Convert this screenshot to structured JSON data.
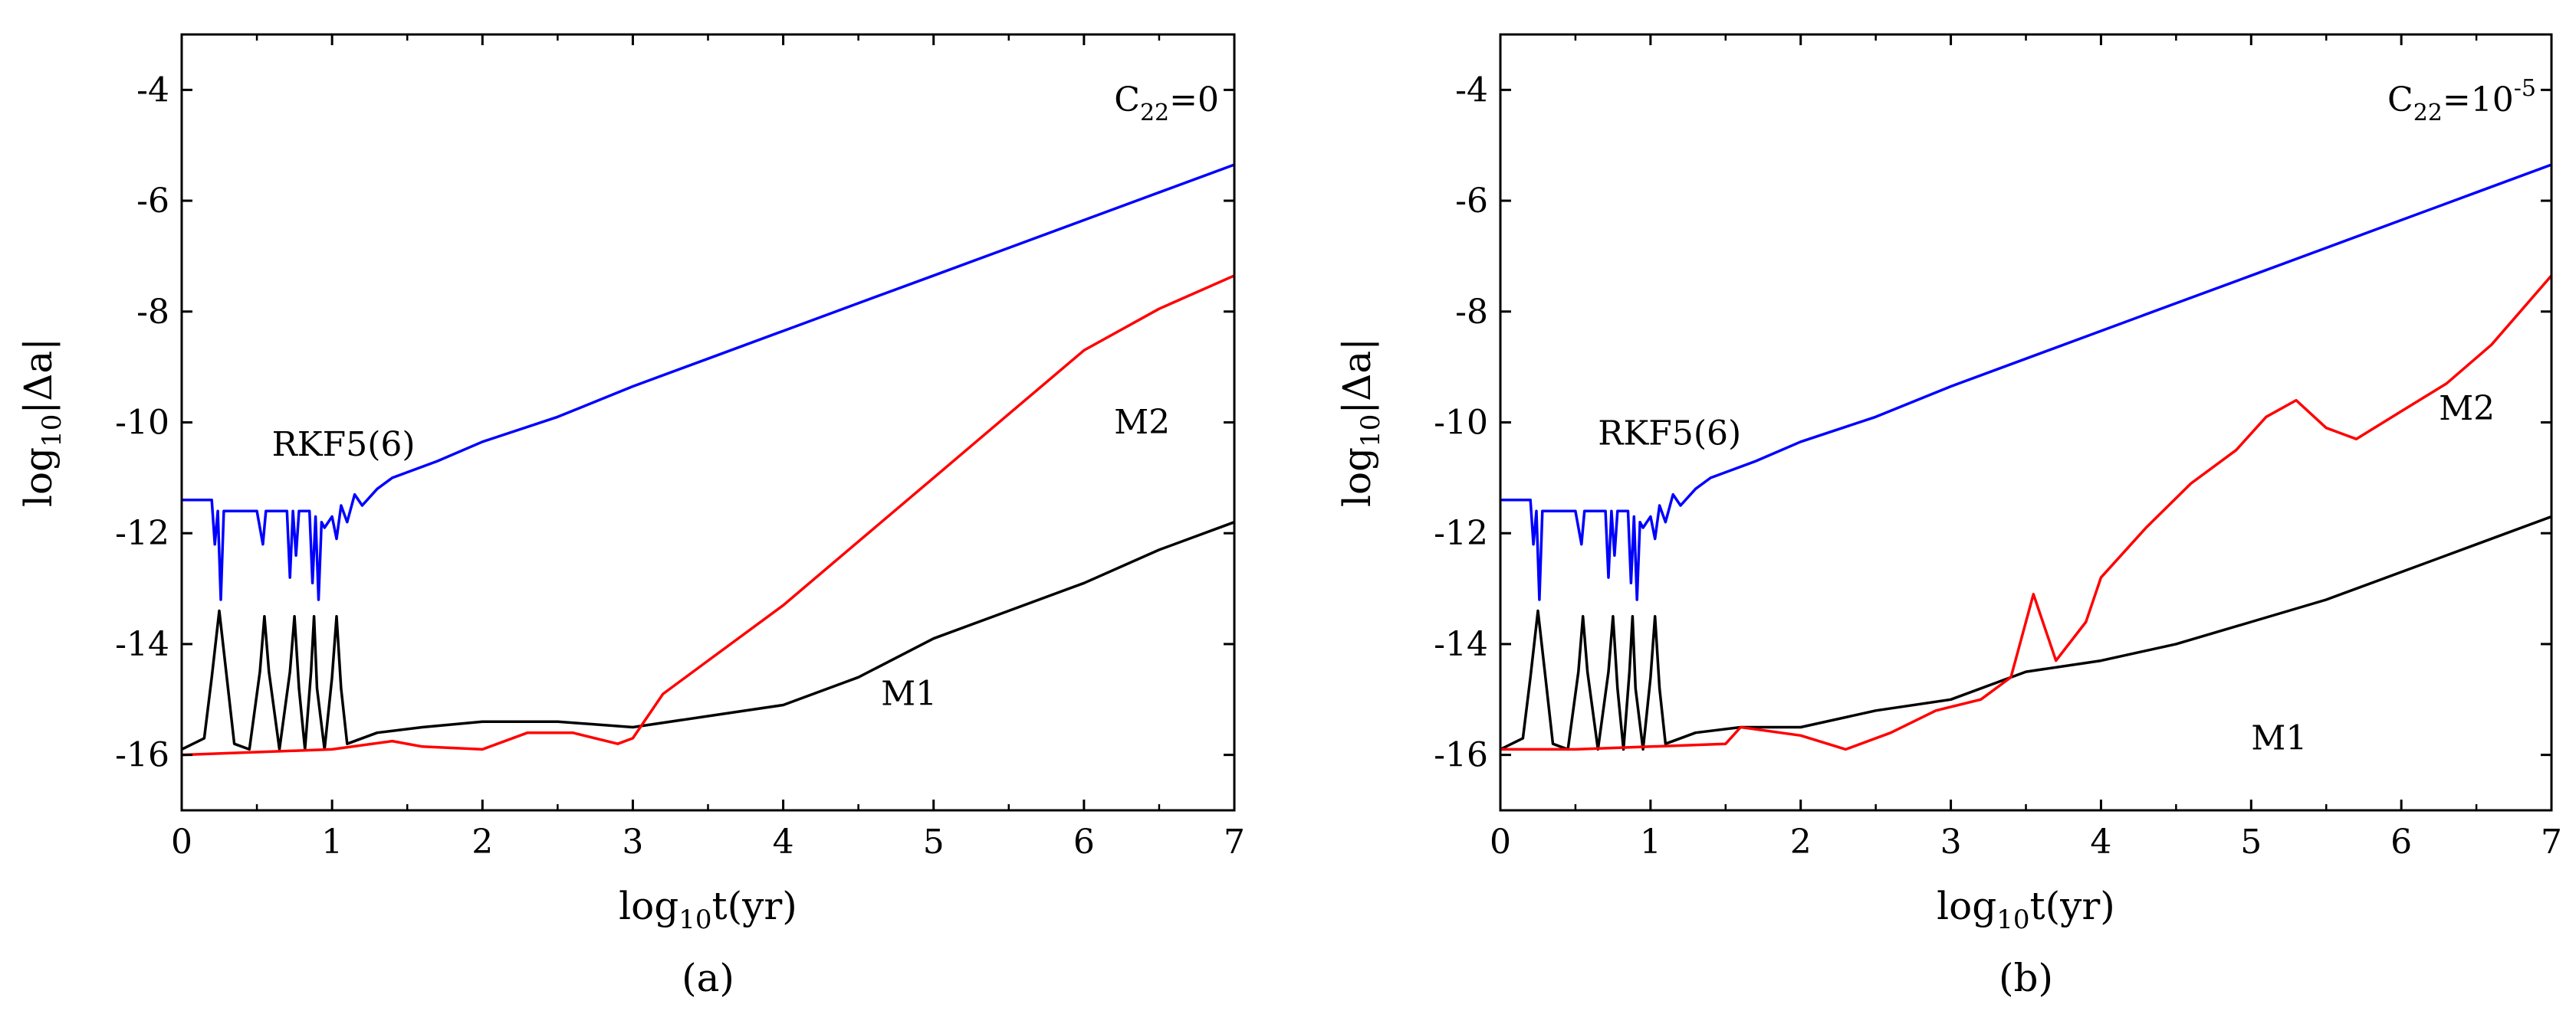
{
  "figure": {
    "captions": [
      "(a)",
      "(b)"
    ]
  },
  "chart_data": [
    {
      "type": "line",
      "panel_label": "(a)",
      "annotation": {
        "base": "C",
        "sub": "22",
        "rest": "=0",
        "sup": ""
      },
      "xlabel": {
        "base": "log",
        "sub": "10",
        "rest": "t(yr)"
      },
      "ylabel": {
        "base": "log",
        "sub": "10",
        "rest": "|Δa|"
      },
      "xlim": [
        0,
        7
      ],
      "ylim": [
        -17,
        -3
      ],
      "xticks": [
        0,
        1,
        2,
        3,
        4,
        5,
        6,
        7
      ],
      "xtick_labels": [
        "0",
        "1",
        "2",
        "3",
        "4",
        "5",
        "6",
        "7"
      ],
      "yticks": [
        -16,
        -14,
        -12,
        -10,
        -8,
        -6,
        -4
      ],
      "ytick_labels": [
        "-16",
        "-14",
        "-12",
        "-10",
        "-8",
        "-6",
        "-4"
      ],
      "series": [
        {
          "name": "RKF5(6)",
          "color": "#0000ff",
          "label_pos": [
            0.6,
            -10.6
          ],
          "x": [
            0,
            0.2,
            0.22,
            0.24,
            0.26,
            0.28,
            0.3,
            0.5,
            0.54,
            0.56,
            0.58,
            0.7,
            0.72,
            0.74,
            0.76,
            0.78,
            0.85,
            0.87,
            0.89,
            0.91,
            0.93,
            0.95,
            1.0,
            1.03,
            1.06,
            1.1,
            1.15,
            1.2,
            1.3,
            1.4,
            1.5,
            1.7,
            2.0,
            2.5,
            3.0,
            3.5,
            4.0,
            4.5,
            5.0,
            5.5,
            6.0,
            6.5,
            7.0
          ],
          "y": [
            -11.4,
            -11.4,
            -12.2,
            -11.6,
            -13.2,
            -11.6,
            -11.6,
            -11.6,
            -12.2,
            -11.6,
            -11.6,
            -11.6,
            -12.8,
            -11.6,
            -12.4,
            -11.6,
            -11.6,
            -12.9,
            -11.7,
            -13.2,
            -11.8,
            -11.9,
            -11.7,
            -12.1,
            -11.5,
            -11.8,
            -11.3,
            -11.5,
            -11.2,
            -11.0,
            -10.9,
            -10.7,
            -10.35,
            -9.9,
            -9.35,
            -8.85,
            -8.35,
            -7.85,
            -7.35,
            -6.85,
            -6.35,
            -5.85,
            -5.35
          ]
        },
        {
          "name": "M1",
          "color": "#000000",
          "label_pos": [
            4.65,
            -15.1
          ],
          "x": [
            0,
            0.15,
            0.2,
            0.25,
            0.3,
            0.35,
            0.45,
            0.52,
            0.55,
            0.58,
            0.65,
            0.72,
            0.75,
            0.78,
            0.82,
            0.86,
            0.88,
            0.9,
            0.95,
            1.0,
            1.03,
            1.06,
            1.1,
            1.3,
            1.6,
            2.0,
            2.5,
            3.0,
            3.5,
            4.0,
            4.5,
            5.0,
            5.5,
            6.0,
            6.5,
            7.0
          ],
          "y": [
            -15.9,
            -15.7,
            -14.6,
            -13.4,
            -14.6,
            -15.8,
            -15.9,
            -14.5,
            -13.5,
            -14.5,
            -15.9,
            -14.5,
            -13.5,
            -14.8,
            -15.9,
            -14.5,
            -13.5,
            -14.8,
            -15.9,
            -14.6,
            -13.5,
            -14.8,
            -15.8,
            -15.6,
            -15.5,
            -15.4,
            -15.4,
            -15.5,
            -15.3,
            -15.1,
            -14.6,
            -13.9,
            -13.4,
            -12.9,
            -12.3,
            -11.8
          ]
        },
        {
          "name": "M2",
          "color": "#ff0000",
          "label_pos": [
            6.2,
            -10.2
          ],
          "x": [
            0,
            0.5,
            1.0,
            1.4,
            1.6,
            2.0,
            2.3,
            2.6,
            2.9,
            3.0,
            3.2,
            3.5,
            4.0,
            4.5,
            5.0,
            5.5,
            6.0,
            6.5,
            7.0
          ],
          "y": [
            -16.0,
            -15.95,
            -15.9,
            -15.75,
            -15.85,
            -15.9,
            -15.6,
            -15.6,
            -15.8,
            -15.7,
            -14.9,
            -14.3,
            -13.3,
            -12.15,
            -11.0,
            -9.85,
            -8.7,
            -7.95,
            -7.35
          ]
        }
      ]
    },
    {
      "type": "line",
      "panel_label": "(b)",
      "annotation": {
        "base": "C",
        "sub": "22",
        "rest": "=10",
        "sup": "-5"
      },
      "xlabel": {
        "base": "log",
        "sub": "10",
        "rest": "t(yr)"
      },
      "ylabel": {
        "base": "log",
        "sub": "10",
        "rest": "|Δa|"
      },
      "xlim": [
        0,
        7
      ],
      "ylim": [
        -17,
        -3
      ],
      "xticks": [
        0,
        1,
        2,
        3,
        4,
        5,
        6,
        7
      ],
      "xtick_labels": [
        "0",
        "1",
        "2",
        "3",
        "4",
        "5",
        "6",
        "7"
      ],
      "yticks": [
        -16,
        -14,
        -12,
        -10,
        -8,
        -6,
        -4
      ],
      "ytick_labels": [
        "-16",
        "-14",
        "-12",
        "-10",
        "-8",
        "-6",
        "-4"
      ],
      "series": [
        {
          "name": "RKF5(6)",
          "color": "#0000ff",
          "label_pos": [
            0.65,
            -10.4
          ],
          "x": [
            0,
            0.2,
            0.22,
            0.24,
            0.26,
            0.28,
            0.3,
            0.5,
            0.54,
            0.56,
            0.58,
            0.7,
            0.72,
            0.74,
            0.76,
            0.78,
            0.85,
            0.87,
            0.89,
            0.91,
            0.93,
            0.95,
            1.0,
            1.03,
            1.06,
            1.1,
            1.15,
            1.2,
            1.3,
            1.4,
            1.5,
            1.7,
            2.0,
            2.5,
            3.0,
            3.5,
            4.0,
            4.5,
            5.0,
            5.5,
            6.0,
            6.5,
            7.0
          ],
          "y": [
            -11.4,
            -11.4,
            -12.2,
            -11.6,
            -13.2,
            -11.6,
            -11.6,
            -11.6,
            -12.2,
            -11.6,
            -11.6,
            -11.6,
            -12.8,
            -11.6,
            -12.4,
            -11.6,
            -11.6,
            -12.9,
            -11.7,
            -13.2,
            -11.8,
            -11.9,
            -11.7,
            -12.1,
            -11.5,
            -11.8,
            -11.3,
            -11.5,
            -11.2,
            -11.0,
            -10.9,
            -10.7,
            -10.35,
            -9.9,
            -9.35,
            -8.85,
            -8.35,
            -7.85,
            -7.35,
            -6.85,
            -6.35,
            -5.85,
            -5.35
          ]
        },
        {
          "name": "M1",
          "color": "#000000",
          "label_pos": [
            5.0,
            -15.9
          ],
          "x": [
            0,
            0.15,
            0.2,
            0.25,
            0.3,
            0.35,
            0.45,
            0.52,
            0.55,
            0.58,
            0.65,
            0.72,
            0.75,
            0.78,
            0.82,
            0.86,
            0.88,
            0.9,
            0.95,
            1.0,
            1.03,
            1.06,
            1.1,
            1.3,
            1.6,
            2.0,
            2.5,
            3.0,
            3.5,
            4.0,
            4.5,
            5.0,
            5.5,
            6.0,
            6.5,
            7.0
          ],
          "y": [
            -15.9,
            -15.7,
            -14.6,
            -13.4,
            -14.6,
            -15.8,
            -15.9,
            -14.5,
            -13.5,
            -14.5,
            -15.9,
            -14.5,
            -13.5,
            -14.8,
            -15.9,
            -14.5,
            -13.5,
            -14.8,
            -15.9,
            -14.6,
            -13.5,
            -14.8,
            -15.8,
            -15.6,
            -15.5,
            -15.5,
            -15.2,
            -15.0,
            -14.5,
            -14.3,
            -14.0,
            -13.6,
            -13.2,
            -12.7,
            -12.2,
            -11.7
          ]
        },
        {
          "name": "M2",
          "color": "#ff0000",
          "label_pos": [
            6.25,
            -9.95
          ],
          "x": [
            0,
            0.5,
            1.0,
            1.5,
            1.6,
            2.0,
            2.3,
            2.6,
            2.9,
            3.2,
            3.4,
            3.55,
            3.7,
            3.9,
            4.0,
            4.3,
            4.6,
            4.9,
            5.1,
            5.3,
            5.5,
            5.7,
            6.0,
            6.3,
            6.6,
            7.0
          ],
          "y": [
            -15.9,
            -15.9,
            -15.85,
            -15.8,
            -15.5,
            -15.65,
            -15.9,
            -15.6,
            -15.2,
            -15.0,
            -14.6,
            -13.1,
            -14.3,
            -13.6,
            -12.8,
            -11.9,
            -11.1,
            -10.5,
            -9.9,
            -9.6,
            -10.1,
            -10.3,
            -9.8,
            -9.3,
            -8.6,
            -7.35
          ]
        }
      ]
    }
  ]
}
